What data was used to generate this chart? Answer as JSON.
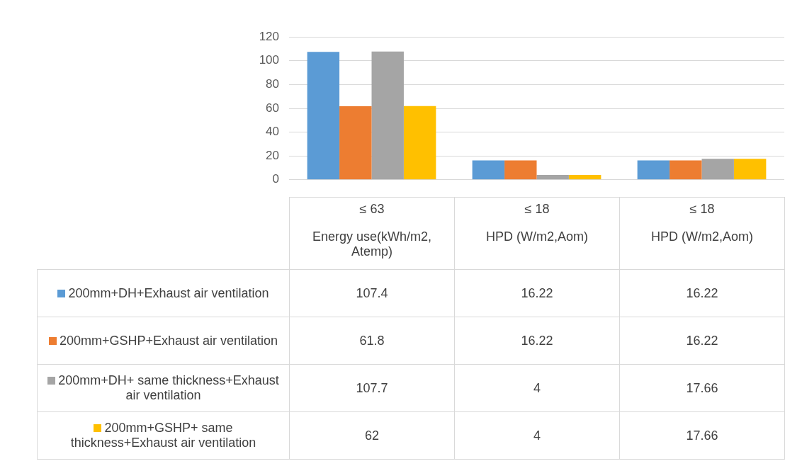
{
  "chart_data": {
    "type": "bar",
    "categories": [
      "≤ 63\nEnergy use(kWh/m2, Atemp)",
      "≤ 18\nHPD (W/m2,Aom)",
      "≤ 18\nHPD (W/m2,Aom)"
    ],
    "series": [
      {
        "name": "200mm+DH+Exhaust air ventilation",
        "color": "#5b9bd5",
        "values": [
          107.4,
          16.22,
          16.22
        ]
      },
      {
        "name": "200mm+GSHP+Exhaust air ventilation",
        "color": "#ed7d31",
        "values": [
          61.8,
          16.22,
          16.22
        ]
      },
      {
        "name": "200mm+DH+ same thickness+Exhaust air ventilation",
        "color": "#a5a5a5",
        "values": [
          107.7,
          4,
          17.66
        ]
      },
      {
        "name": "200mm+GSHP+ same thickness+Exhaust air ventilation",
        "color": "#ffc000",
        "values": [
          62,
          4,
          17.66
        ]
      }
    ],
    "ylim": [
      0,
      120
    ],
    "yticks": [
      0,
      20,
      40,
      60,
      80,
      100,
      120
    ],
    "grid": "y",
    "legend": "bottom",
    "data_labels": true
  }
}
